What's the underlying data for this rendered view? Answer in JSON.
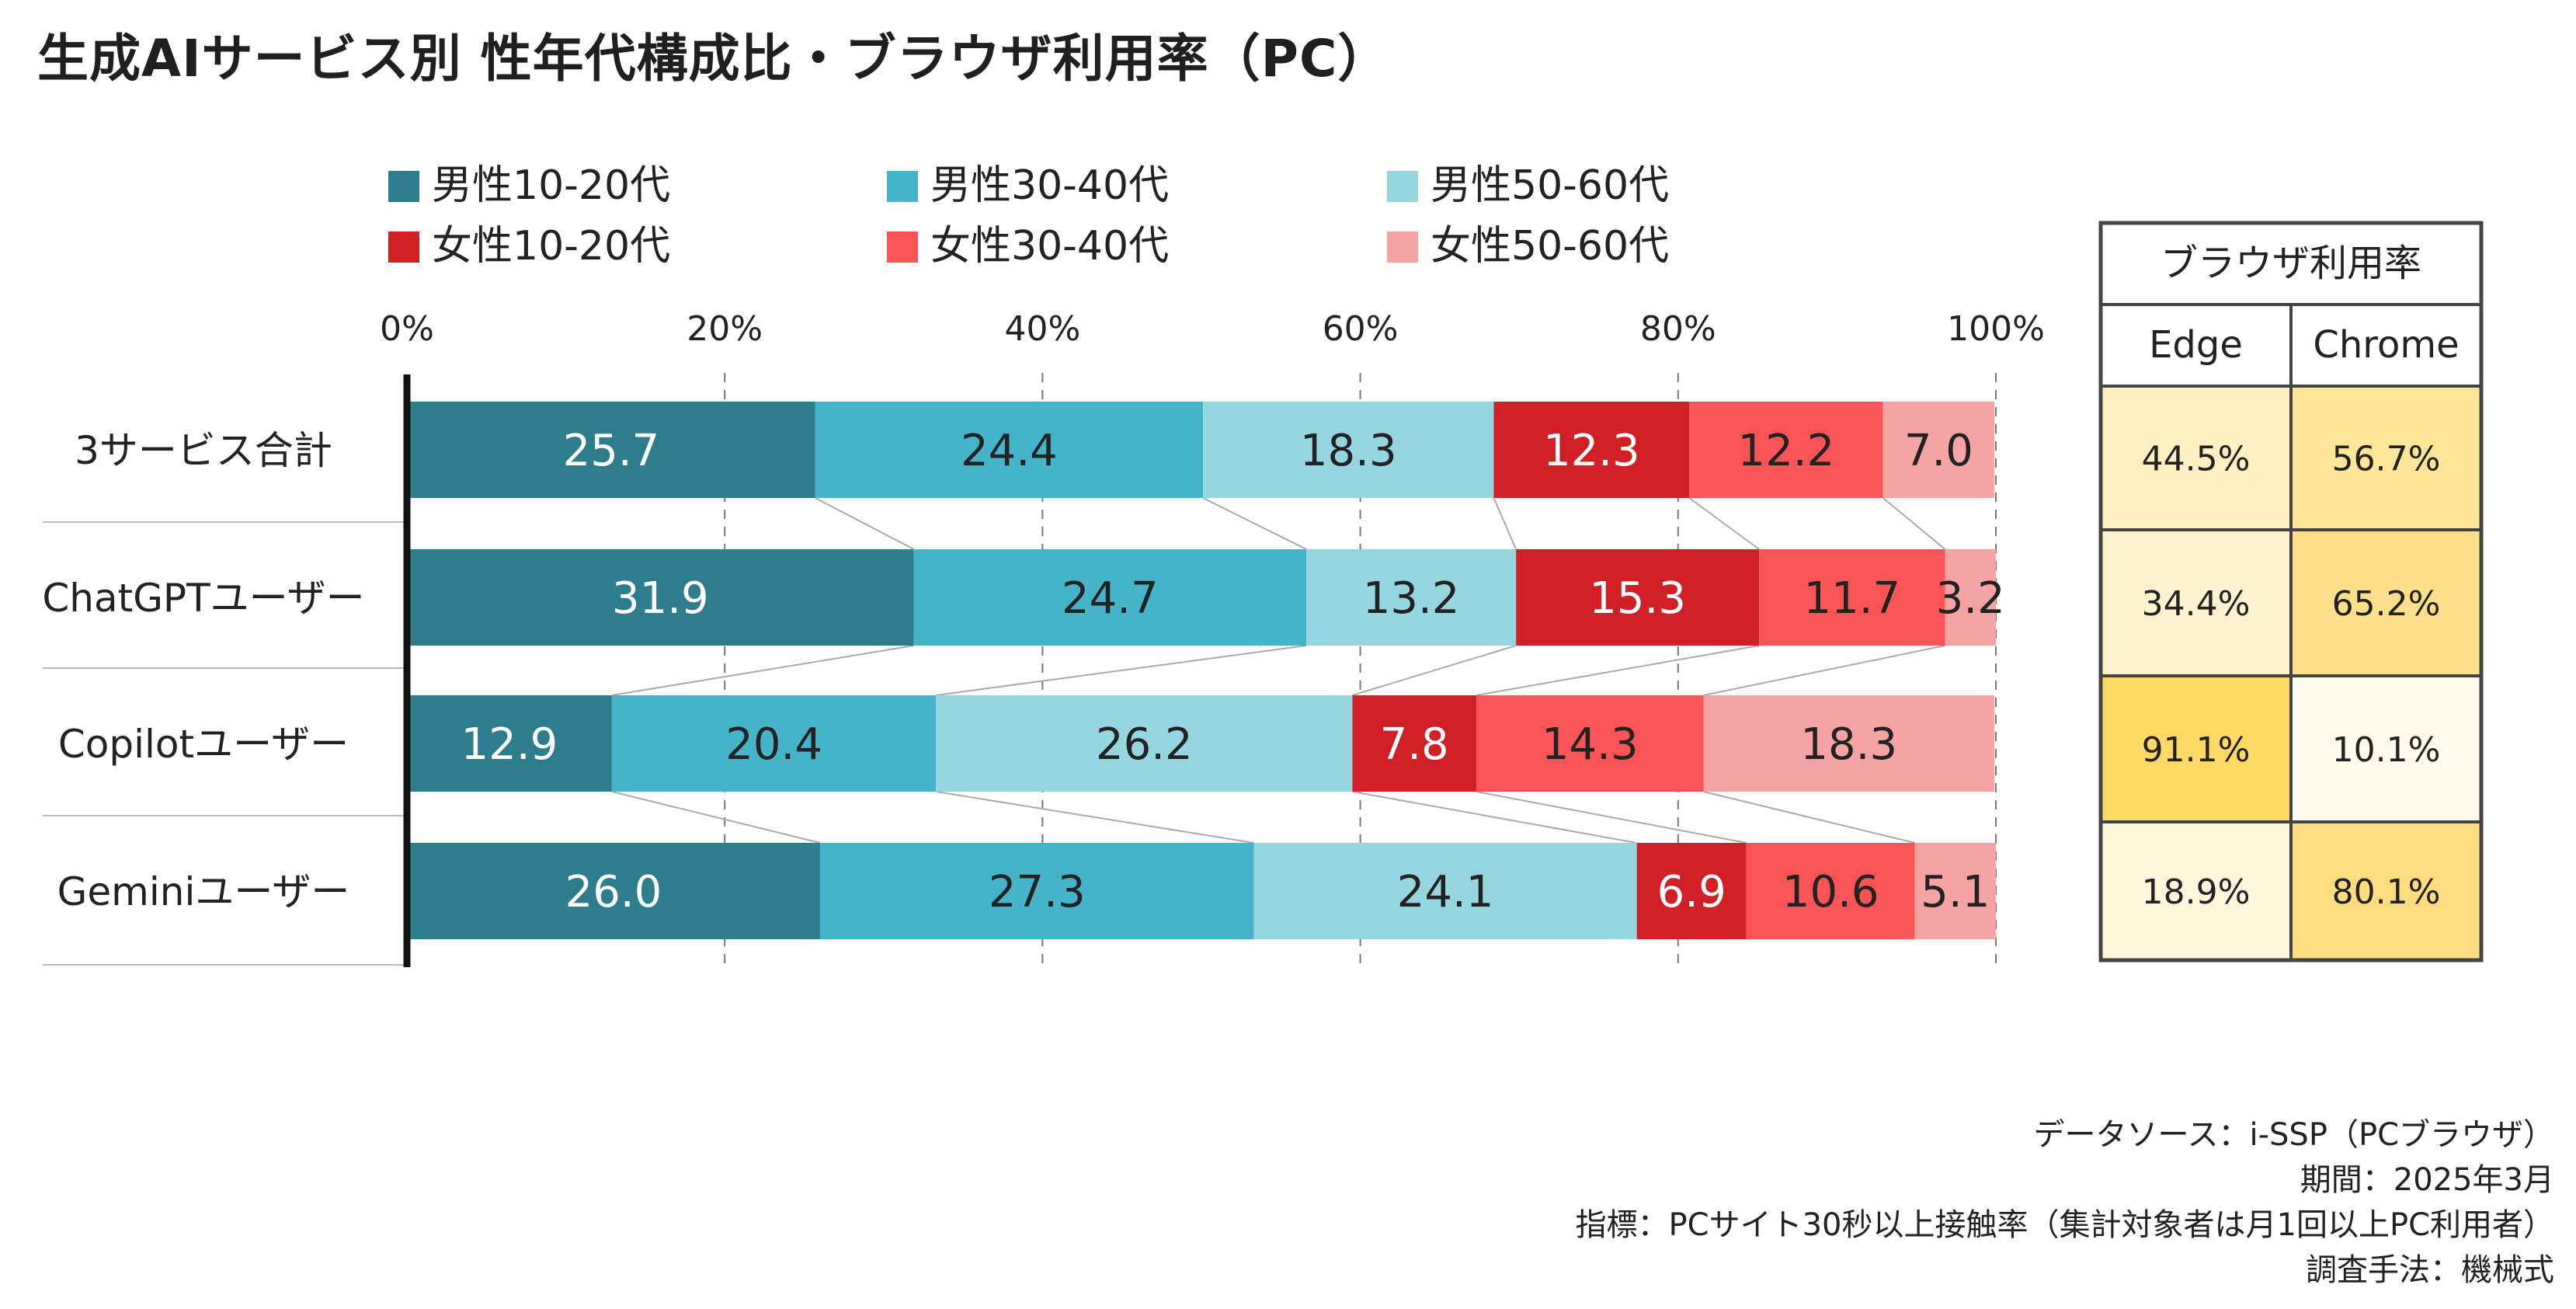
{
  "title": "生成AIサービス別 性年代構成比・ブラウザ利用率（PC）",
  "notes": [
    "データソース：i-SSP（PCブラウザ）",
    "期間：2025年3月",
    "指標：PCサイト30秒以上接触率（集計対象者は月1回以上PC利用者）",
    "調査手法：機械式"
  ],
  "chart_data": {
    "type": "bar",
    "orientation": "horizontal",
    "stacked": "percent",
    "categories": [
      "3サービス合計",
      "ChatGPTユーザー",
      "Copilotユーザー",
      "Geminiユーザー"
    ],
    "series": [
      {
        "name": "男性10-20代",
        "color": "#2e7d8c",
        "label_color": "#ffffff",
        "values": [
          25.7,
          31.9,
          12.9,
          26.0
        ]
      },
      {
        "name": "男性30-40代",
        "color": "#45b4c9",
        "label_color": "#222222",
        "values": [
          24.4,
          24.7,
          20.4,
          27.3
        ]
      },
      {
        "name": "男性50-60代",
        "color": "#96d6e0",
        "label_color": "#222222",
        "values": [
          18.3,
          13.2,
          26.2,
          24.1
        ]
      },
      {
        "name": "女性10-20代",
        "color": "#d12025",
        "label_color": "#ffffff",
        "values": [
          12.3,
          15.3,
          7.8,
          6.9
        ]
      },
      {
        "name": "女性30-40代",
        "color": "#fb5457",
        "label_color": "#222222",
        "values": [
          12.2,
          11.7,
          14.3,
          10.6
        ]
      },
      {
        "name": "女性50-60代",
        "color": "#f5a3a3",
        "label_color": "#222222",
        "values": [
          7.0,
          3.2,
          18.3,
          5.1
        ]
      }
    ],
    "x_ticks": [
      "0%",
      "20%",
      "40%",
      "60%",
      "80%",
      "100%"
    ],
    "xlim": [
      0,
      100
    ],
    "grid": "vertical dashed",
    "legend": "top",
    "browser_table": {
      "header": "ブラウザ利用率",
      "columns": [
        "Edge",
        "Chrome"
      ],
      "rows": [
        {
          "category": "3サービス合計",
          "values": [
            "44.5%",
            "56.7%"
          ],
          "fills": [
            "#fff0c2",
            "#ffe597"
          ]
        },
        {
          "category": "ChatGPTユーザー",
          "values": [
            "34.4%",
            "65.2%"
          ],
          "fills": [
            "#fff3cf",
            "#ffe08a"
          ]
        },
        {
          "category": "Copilotユーザー",
          "values": [
            "91.1%",
            "10.1%"
          ],
          "fills": [
            "#ffd966",
            "#fffaeb"
          ]
        },
        {
          "category": "Geminiユーザー",
          "values": [
            "18.9%",
            "80.1%"
          ],
          "fills": [
            "#fff6dc",
            "#ffdd7f"
          ]
        }
      ]
    }
  }
}
